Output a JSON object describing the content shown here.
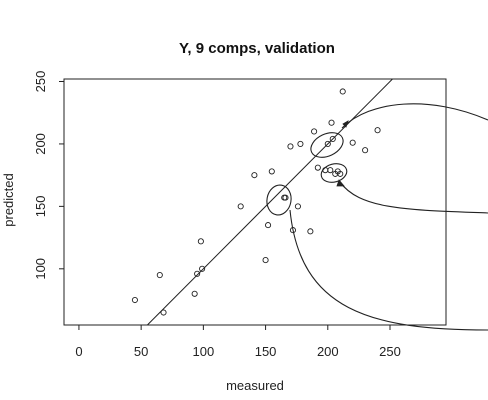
{
  "chart_data": {
    "type": "scatter",
    "title": "Y, 9 comps, validation",
    "xlabel": "measured",
    "ylabel": "predicted",
    "xlim": [
      -12,
      295
    ],
    "ylim": [
      55,
      252
    ],
    "xticks": [
      0,
      50,
      100,
      150,
      200,
      250
    ],
    "yticks": [
      100,
      150,
      200,
      250
    ],
    "grid": false,
    "reference_line": {
      "type": "identity",
      "slope": 1,
      "intercept": 0
    },
    "points": [
      {
        "x": 45,
        "y": 75
      },
      {
        "x": 65,
        "y": 95
      },
      {
        "x": 68,
        "y": 65
      },
      {
        "x": 93,
        "y": 80
      },
      {
        "x": 95,
        "y": 96
      },
      {
        "x": 98,
        "y": 122
      },
      {
        "x": 99,
        "y": 100
      },
      {
        "x": 130,
        "y": 150
      },
      {
        "x": 141,
        "y": 175
      },
      {
        "x": 150,
        "y": 107
      },
      {
        "x": 152,
        "y": 135
      },
      {
        "x": 155,
        "y": 178
      },
      {
        "x": 165,
        "y": 157
      },
      {
        "x": 166,
        "y": 157
      },
      {
        "x": 170,
        "y": 198
      },
      {
        "x": 172,
        "y": 131
      },
      {
        "x": 176,
        "y": 150
      },
      {
        "x": 178,
        "y": 200
      },
      {
        "x": 186,
        "y": 130
      },
      {
        "x": 189,
        "y": 210
      },
      {
        "x": 192,
        "y": 181
      },
      {
        "x": 198,
        "y": 179
      },
      {
        "x": 200,
        "y": 200
      },
      {
        "x": 202,
        "y": 179
      },
      {
        "x": 203,
        "y": 217
      },
      {
        "x": 204,
        "y": 204
      },
      {
        "x": 206,
        "y": 176
      },
      {
        "x": 208,
        "y": 178
      },
      {
        "x": 210,
        "y": 176
      },
      {
        "x": 212,
        "y": 242
      },
      {
        "x": 220,
        "y": 201
      },
      {
        "x": 230,
        "y": 195
      },
      {
        "x": 240,
        "y": 211
      }
    ]
  }
}
